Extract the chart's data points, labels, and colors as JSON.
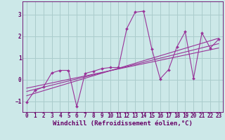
{
  "background_color": "#cce8e8",
  "grid_color": "#aacccc",
  "line_color": "#993399",
  "marker_color": "#993399",
  "spine_color": "#660066",
  "xlabel": "Windchill (Refroidissement éolien,°C)",
  "xlim": [
    -0.5,
    23.5
  ],
  "ylim": [
    -1.5,
    3.6
  ],
  "yticks": [
    -1,
    0,
    1,
    2,
    3
  ],
  "xticks": [
    0,
    1,
    2,
    3,
    4,
    5,
    6,
    7,
    8,
    9,
    10,
    11,
    12,
    13,
    14,
    15,
    16,
    17,
    18,
    19,
    20,
    21,
    22,
    23
  ],
  "series1_x": [
    0,
    1,
    2,
    3,
    4,
    5,
    6,
    7,
    8,
    9,
    10,
    11,
    12,
    13,
    14,
    15,
    16,
    17,
    18,
    19,
    20,
    21,
    22,
    23
  ],
  "series1_y": [
    -1.05,
    -0.5,
    -0.35,
    0.3,
    0.42,
    0.42,
    -1.25,
    0.28,
    0.38,
    0.5,
    0.55,
    0.55,
    2.35,
    3.1,
    3.15,
    1.4,
    0.03,
    0.45,
    1.5,
    2.2,
    0.05,
    2.15,
    1.45,
    1.85
  ],
  "series2_x": [
    0,
    23
  ],
  "series2_y": [
    -0.75,
    1.9
  ],
  "series3_x": [
    0,
    23
  ],
  "series3_y": [
    -0.55,
    1.65
  ],
  "series4_x": [
    0,
    23
  ],
  "series4_y": [
    -0.4,
    1.45
  ],
  "font_color": "#660066",
  "tick_fontsize": 5.5,
  "label_fontsize": 6.5
}
